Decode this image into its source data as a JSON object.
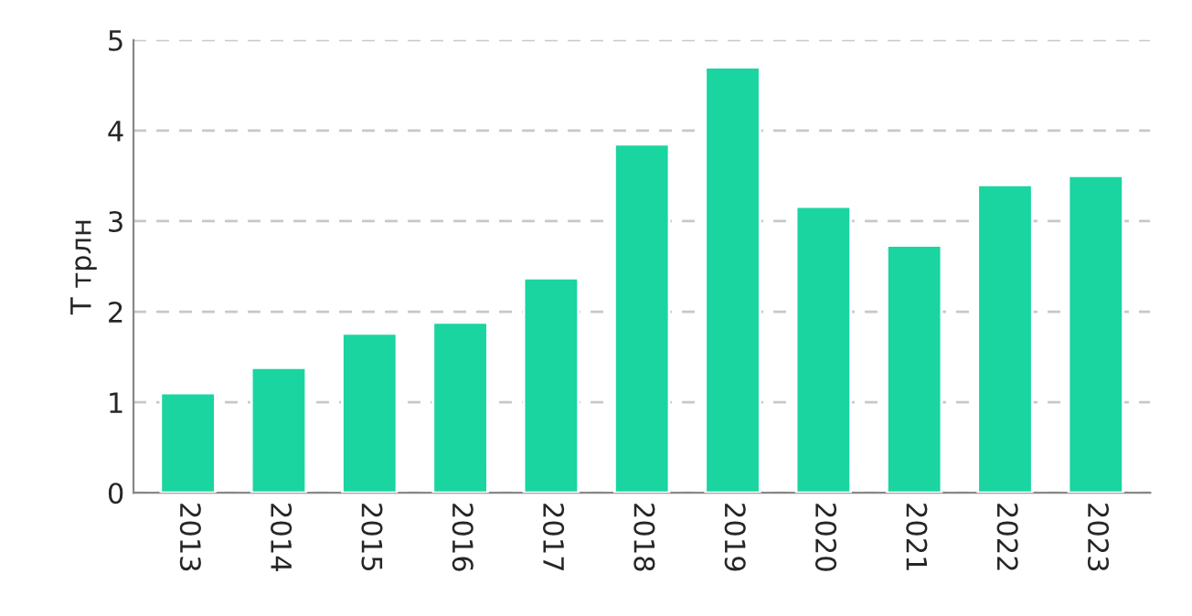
{
  "chart_data": {
    "type": "bar",
    "ylabel": "Т трлн",
    "categories": [
      "2013",
      "2014",
      "2015",
      "2016",
      "2017",
      "2018",
      "2019",
      "2020",
      "2021",
      "2022",
      "2023"
    ],
    "values": [
      1.1,
      1.38,
      1.76,
      1.88,
      2.37,
      3.85,
      4.7,
      3.16,
      2.73,
      3.4,
      3.5
    ],
    "color": "#1ad5a0",
    "ylim": [
      0,
      5
    ],
    "yticks": [
      0,
      1,
      2,
      3,
      4,
      5
    ],
    "grid": "y"
  }
}
